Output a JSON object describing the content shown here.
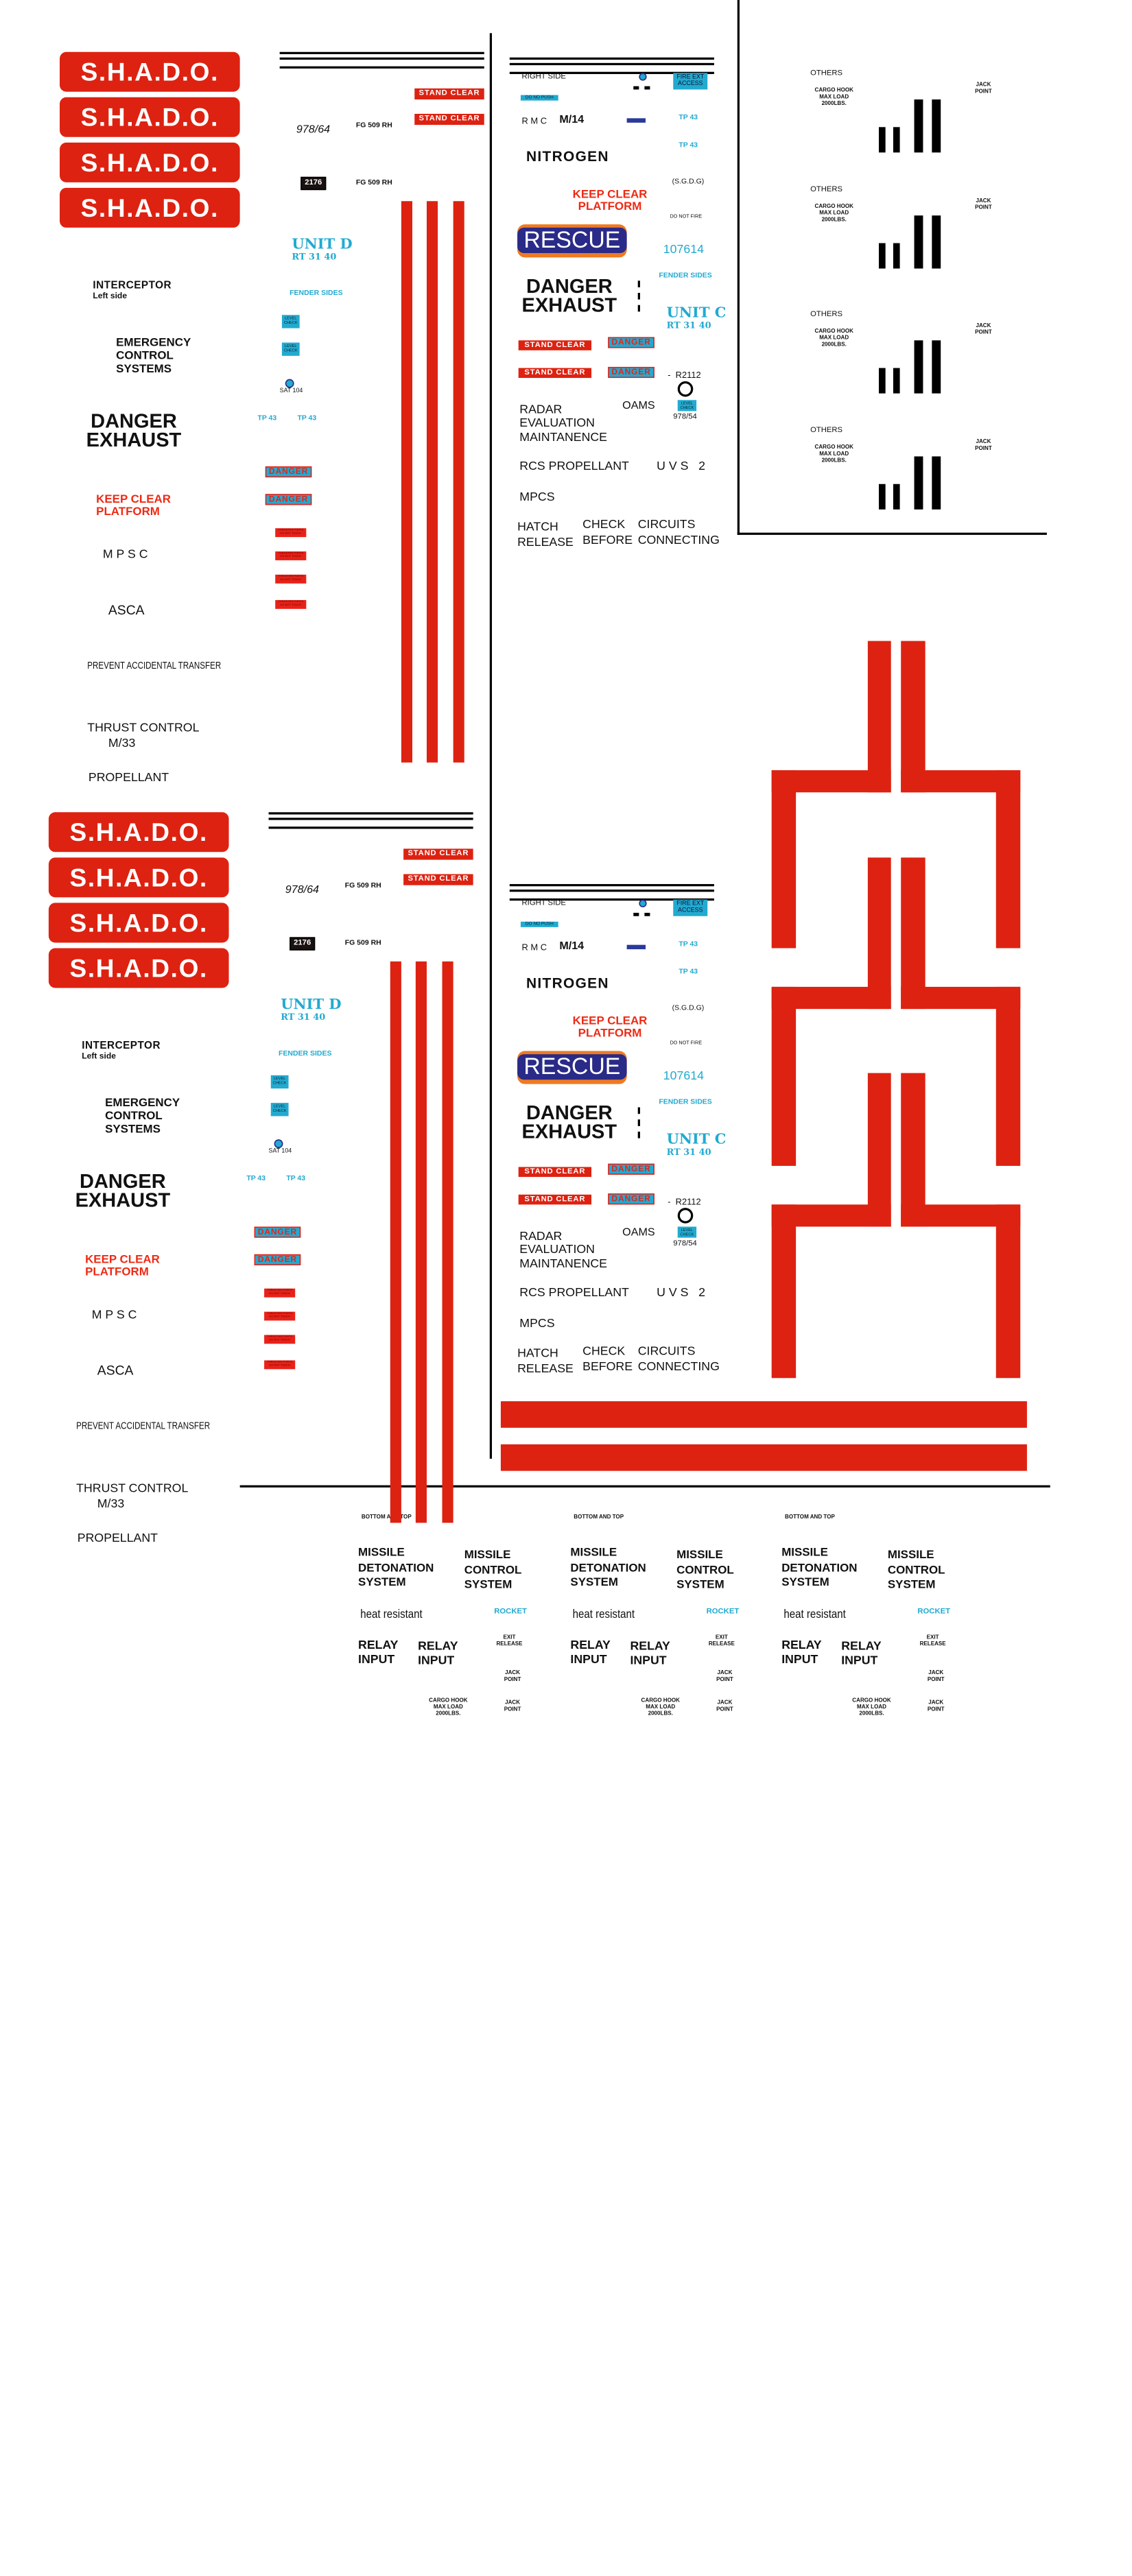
{
  "colors": {
    "red": "#dd2211",
    "cyan": "#22aad0",
    "navy": "#2a2a88",
    "orange": "#ee7a22",
    "black": "#000000"
  },
  "left_panel": {
    "logo": "S.H.A.D.O.",
    "stand_clear": "STAND CLEAR",
    "part_no": "978/64",
    "fg_label": "FG 509 RH",
    "plate_number": "2176",
    "unit": {
      "title": "UNIT D",
      "code": "RT 31 40"
    },
    "fender_sides": "FENDER SIDES",
    "level_check": "LEVEL\nCHECK",
    "sat": "SAT 104",
    "tp": "TP 43",
    "interceptor": "INTERCEPTOR",
    "left_side": "Left side",
    "emergency": "EMERGENCY\nCONTROL\nSYSTEMS",
    "danger_exhaust": "DANGER\nEXHAUST",
    "danger": "DANGER",
    "keep_clear": "KEEP CLEAR\nPLATFORM",
    "thruster": "THRUSTER PORTS\nDO NOT TOUCH",
    "mpsc": "M P S C",
    "asca": "ASCA",
    "prevent": "PREVENT ACCIDENTAL TRANSFER",
    "thrust_control": "THRUST CONTROL",
    "m33": "M/33",
    "propellant": "PROPELLANT"
  },
  "middle_panel": {
    "right_side": "RIGHT SIDE",
    "fire_ext": "FIRE EXT\nACCESS",
    "do_no_push": "DO NO PUSH",
    "rmc": "R M C",
    "m14": "M/14",
    "tp": "TP 43",
    "nitrogen": "NITROGEN",
    "sgdg": "(S.G.D.G)",
    "keep_clear": "KEEP CLEAR\nPLATFORM",
    "do_not_fire": "DO NOT FIRE",
    "rescue": "RESCUE",
    "number": "107614",
    "fender_sides": "FENDER SIDES",
    "danger_exhaust": "DANGER\nEXHAUST",
    "unit": {
      "title": "UNIT C",
      "code": "RT 31 40"
    },
    "stand_clear": "STAND CLEAR",
    "danger": "DANGER",
    "r2112": "-  R2112",
    "level_check": "LEVEL\nCHECK",
    "part_no": "978/54",
    "radar": "RADAR\nEVALUATION\nMAINTANENCE",
    "oams": "OAMS",
    "rcs": "RCS PROPELLANT",
    "uvs": "U V S   2",
    "mpcs": "MPCS",
    "hatch": "HATCH\nRELEASE",
    "check": "CHECK\nBEFORE",
    "circuits": "CIRCUITS\nCONNECTING"
  },
  "cargo_unit": {
    "others": "OTHERS",
    "cargo_hook": "CARGO HOOK\nMAX LOAD\n2000LBS.",
    "jack_point": "JACK\nPOINT"
  },
  "bottom_unit": {
    "bottom_and_top": "BOTTOM AND TOP",
    "missile_detonation": "MISSILE\nDETONATION\nSYSTEM",
    "missile_control": "MISSILE\nCONTROL\nSYSTEM",
    "heat_resistant": "heat resistant",
    "rocket": "ROCKET",
    "relay_input": "RELAY\nINPUT",
    "exit_release": "EXIT\nRELEASE",
    "jack_point": "JACK\nPOINT",
    "cargo_hook": "CARGO HOOK\nMAX LOAD\n2000LBS."
  }
}
